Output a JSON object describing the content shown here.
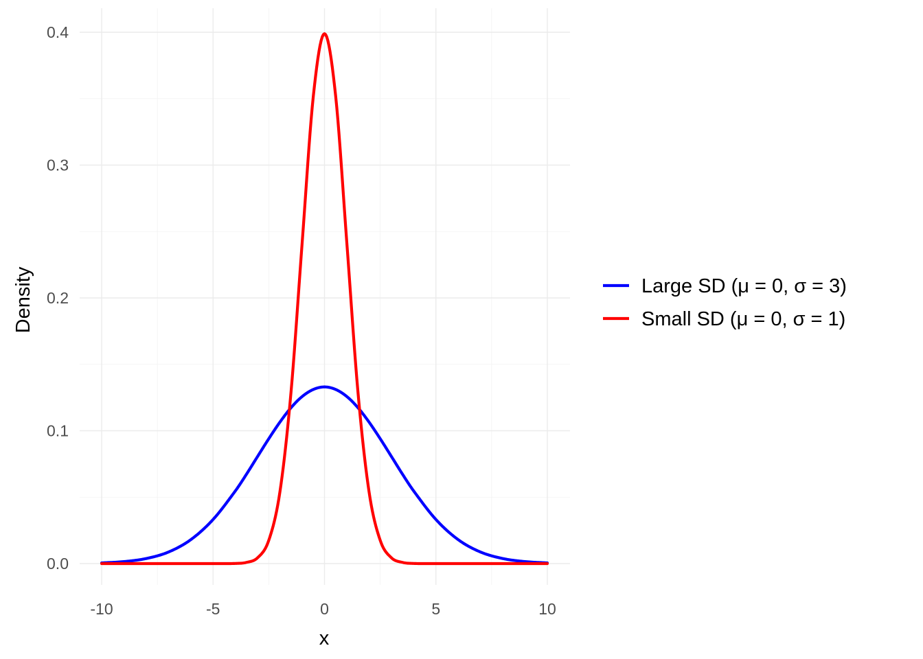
{
  "chart_data": {
    "type": "line",
    "title": "",
    "xlabel": "x",
    "ylabel": "Density",
    "xlim": [
      -10,
      10
    ],
    "ylim": [
      0,
      0.4
    ],
    "x_ticks": [
      -10,
      -5,
      0,
      5,
      10
    ],
    "x_tick_labels": [
      "-10",
      "-5",
      "0",
      "5",
      "10"
    ],
    "y_ticks": [
      0,
      0.1,
      0.2,
      0.3,
      0.4
    ],
    "y_tick_labels": [
      "0.0",
      "0.1",
      "0.2",
      "0.3",
      "0.4"
    ],
    "grid": true,
    "legend_position": "right",
    "x": [
      -10,
      -9,
      -8,
      -7,
      -6,
      -5,
      -4,
      -3.5,
      -3,
      -2.5,
      -2,
      -1.5,
      -1,
      -0.5,
      0,
      0.5,
      1,
      1.5,
      2,
      2.5,
      3,
      3.5,
      4,
      5,
      6,
      7,
      8,
      9,
      10
    ],
    "series": [
      {
        "name": "Large SD (μ = 0, σ = 3)",
        "color": "#0000ff",
        "values": [
          0.0005,
          0.0015,
          0.0038,
          0.0087,
          0.018,
          0.0332,
          0.0547,
          0.0673,
          0.0807,
          0.094,
          0.1065,
          0.1174,
          0.1258,
          0.1311,
          0.133,
          0.1311,
          0.1258,
          0.1174,
          0.1065,
          0.094,
          0.0807,
          0.0673,
          0.0547,
          0.0332,
          0.018,
          0.0087,
          0.0038,
          0.0015,
          0.0005
        ]
      },
      {
        "name": "Small SD (μ = 0, σ = 1)",
        "color": "#ff0000",
        "values": [
          0,
          0,
          0,
          0,
          0,
          1.5e-06,
          0.0001,
          0.0009,
          0.0044,
          0.0175,
          0.054,
          0.1295,
          0.242,
          0.3521,
          0.3989,
          0.3521,
          0.242,
          0.1295,
          0.054,
          0.0175,
          0.0044,
          0.0009,
          0.0001,
          1.5e-06,
          0,
          0,
          0,
          0,
          0
        ]
      }
    ]
  }
}
